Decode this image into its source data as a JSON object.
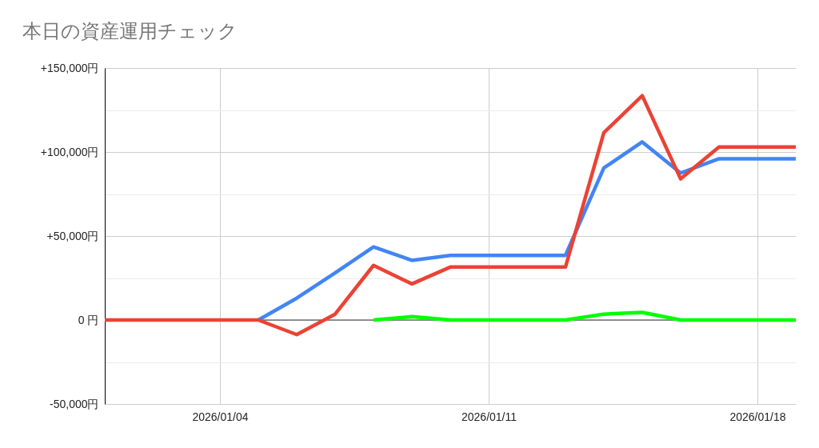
{
  "chart_data": {
    "type": "line",
    "title": "本日の資産運用チェック",
    "x": [
      "2026-01-01",
      "2026-01-02",
      "2026-01-03",
      "2026-01-04",
      "2026-01-05",
      "2026-01-06",
      "2026-01-07",
      "2026-01-08",
      "2026-01-09",
      "2026-01-10",
      "2026-01-11",
      "2026-01-12",
      "2026-01-13",
      "2026-01-14",
      "2026-01-15",
      "2026-01-16",
      "2026-01-17",
      "2026-01-18",
      "2026-01-19"
    ],
    "series": [
      {
        "color": "#4285f4",
        "values": [
          null,
          null,
          null,
          null,
          0,
          13000,
          28000,
          43500,
          35500,
          38500,
          38500,
          38500,
          38500,
          90500,
          106000,
          87500,
          96000,
          96000,
          96000
        ]
      },
      {
        "color": "#ea4335",
        "values": [
          0,
          0,
          0,
          0,
          0,
          -8700,
          3500,
          32500,
          21500,
          31500,
          31500,
          31500,
          31500,
          111500,
          133500,
          84000,
          103000,
          103000,
          103000
        ]
      },
      {
        "color": "#00ff00",
        "values": [
          null,
          null,
          null,
          null,
          null,
          null,
          null,
          0,
          2000,
          0,
          0,
          0,
          0,
          3500,
          4500,
          0,
          0,
          0,
          0
        ]
      }
    ],
    "xlim": [
      "2026-01-01",
      "2026-01-19"
    ],
    "xticks": [
      {
        "value": "2026-01-04",
        "label": "2026/01/04"
      },
      {
        "value": "2026-01-11",
        "label": "2026/01/11"
      },
      {
        "value": "2026-01-18",
        "label": "2026/01/18"
      }
    ],
    "ylim": [
      -50000,
      150000
    ],
    "yticks": [
      {
        "value": -50000,
        "label": "-50,000円"
      },
      {
        "value": -25000,
        "label": null
      },
      {
        "value": 0,
        "label": "0 円"
      },
      {
        "value": 25000,
        "label": null
      },
      {
        "value": 50000,
        "label": "+50,000円"
      },
      {
        "value": 75000,
        "label": null
      },
      {
        "value": 100000,
        "label": "+100,000円"
      },
      {
        "value": 125000,
        "label": null
      },
      {
        "value": 150000,
        "label": "+150,000円"
      }
    ],
    "ref_lines": [
      {
        "axis": "y",
        "value": 0,
        "color": "#333333"
      }
    ],
    "grid": true,
    "line_style": "solid"
  }
}
